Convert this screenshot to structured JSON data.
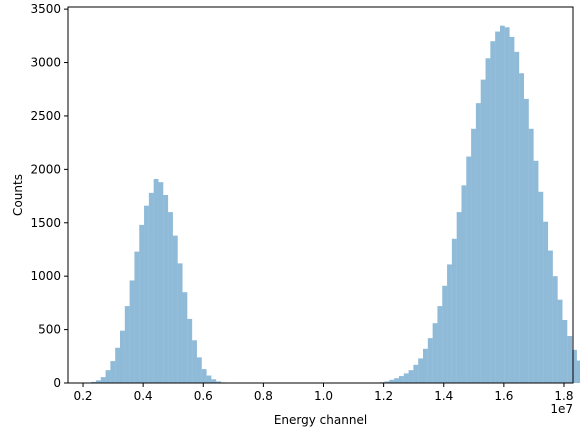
{
  "chart_data": {
    "type": "bar",
    "subtype": "histogram",
    "title": "",
    "xlabel": "Energy channel",
    "ylabel": "Counts",
    "x_offset_label": "1e7",
    "xlim": [
      1500000.0,
      18300000.0
    ],
    "ylim": [
      0,
      3520
    ],
    "x_ticks": [
      2000000.0,
      4000000.0,
      6000000.0,
      8000000.0,
      10000000.0,
      12000000.0,
      14000000.0,
      16000000.0,
      18000000.0
    ],
    "x_tick_labels": [
      "0.2",
      "0.4",
      "0.6",
      "0.8",
      "1.0",
      "1.2",
      "1.4",
      "1.6",
      "1.8"
    ],
    "y_ticks": [
      0,
      500,
      1000,
      1500,
      2000,
      2500,
      3000,
      3500
    ],
    "y_tick_labels": [
      "0",
      "500",
      "1000",
      "1500",
      "2000",
      "2500",
      "3000",
      "3500"
    ],
    "grid": false,
    "bar_color": "#1f77b4",
    "bar_opacity": 0.5,
    "bin_start": 1950000,
    "bin_width": 160000,
    "counts": [
      2,
      4,
      10,
      25,
      55,
      120,
      205,
      330,
      490,
      720,
      960,
      1230,
      1480,
      1660,
      1780,
      1910,
      1880,
      1760,
      1600,
      1380,
      1120,
      850,
      600,
      400,
      240,
      130,
      70,
      35,
      15,
      6,
      3,
      2,
      1,
      1,
      0,
      0,
      0,
      0,
      0,
      0,
      0,
      0,
      0,
      0,
      0,
      0,
      0,
      0,
      0,
      0,
      0,
      0,
      0,
      0,
      0,
      0,
      0,
      0,
      0,
      1,
      2,
      4,
      8,
      15,
      30,
      45,
      65,
      90,
      120,
      170,
      230,
      320,
      420,
      560,
      720,
      910,
      1110,
      1350,
      1600,
      1850,
      2120,
      2380,
      2620,
      2840,
      3040,
      3200,
      3290,
      3345,
      3330,
      3240,
      3100,
      2900,
      2660,
      2380,
      2080,
      1790,
      1510,
      1240,
      1000,
      780,
      590,
      440,
      310,
      210,
      140,
      90,
      55,
      32,
      18,
      9,
      5,
      2,
      1
    ]
  }
}
